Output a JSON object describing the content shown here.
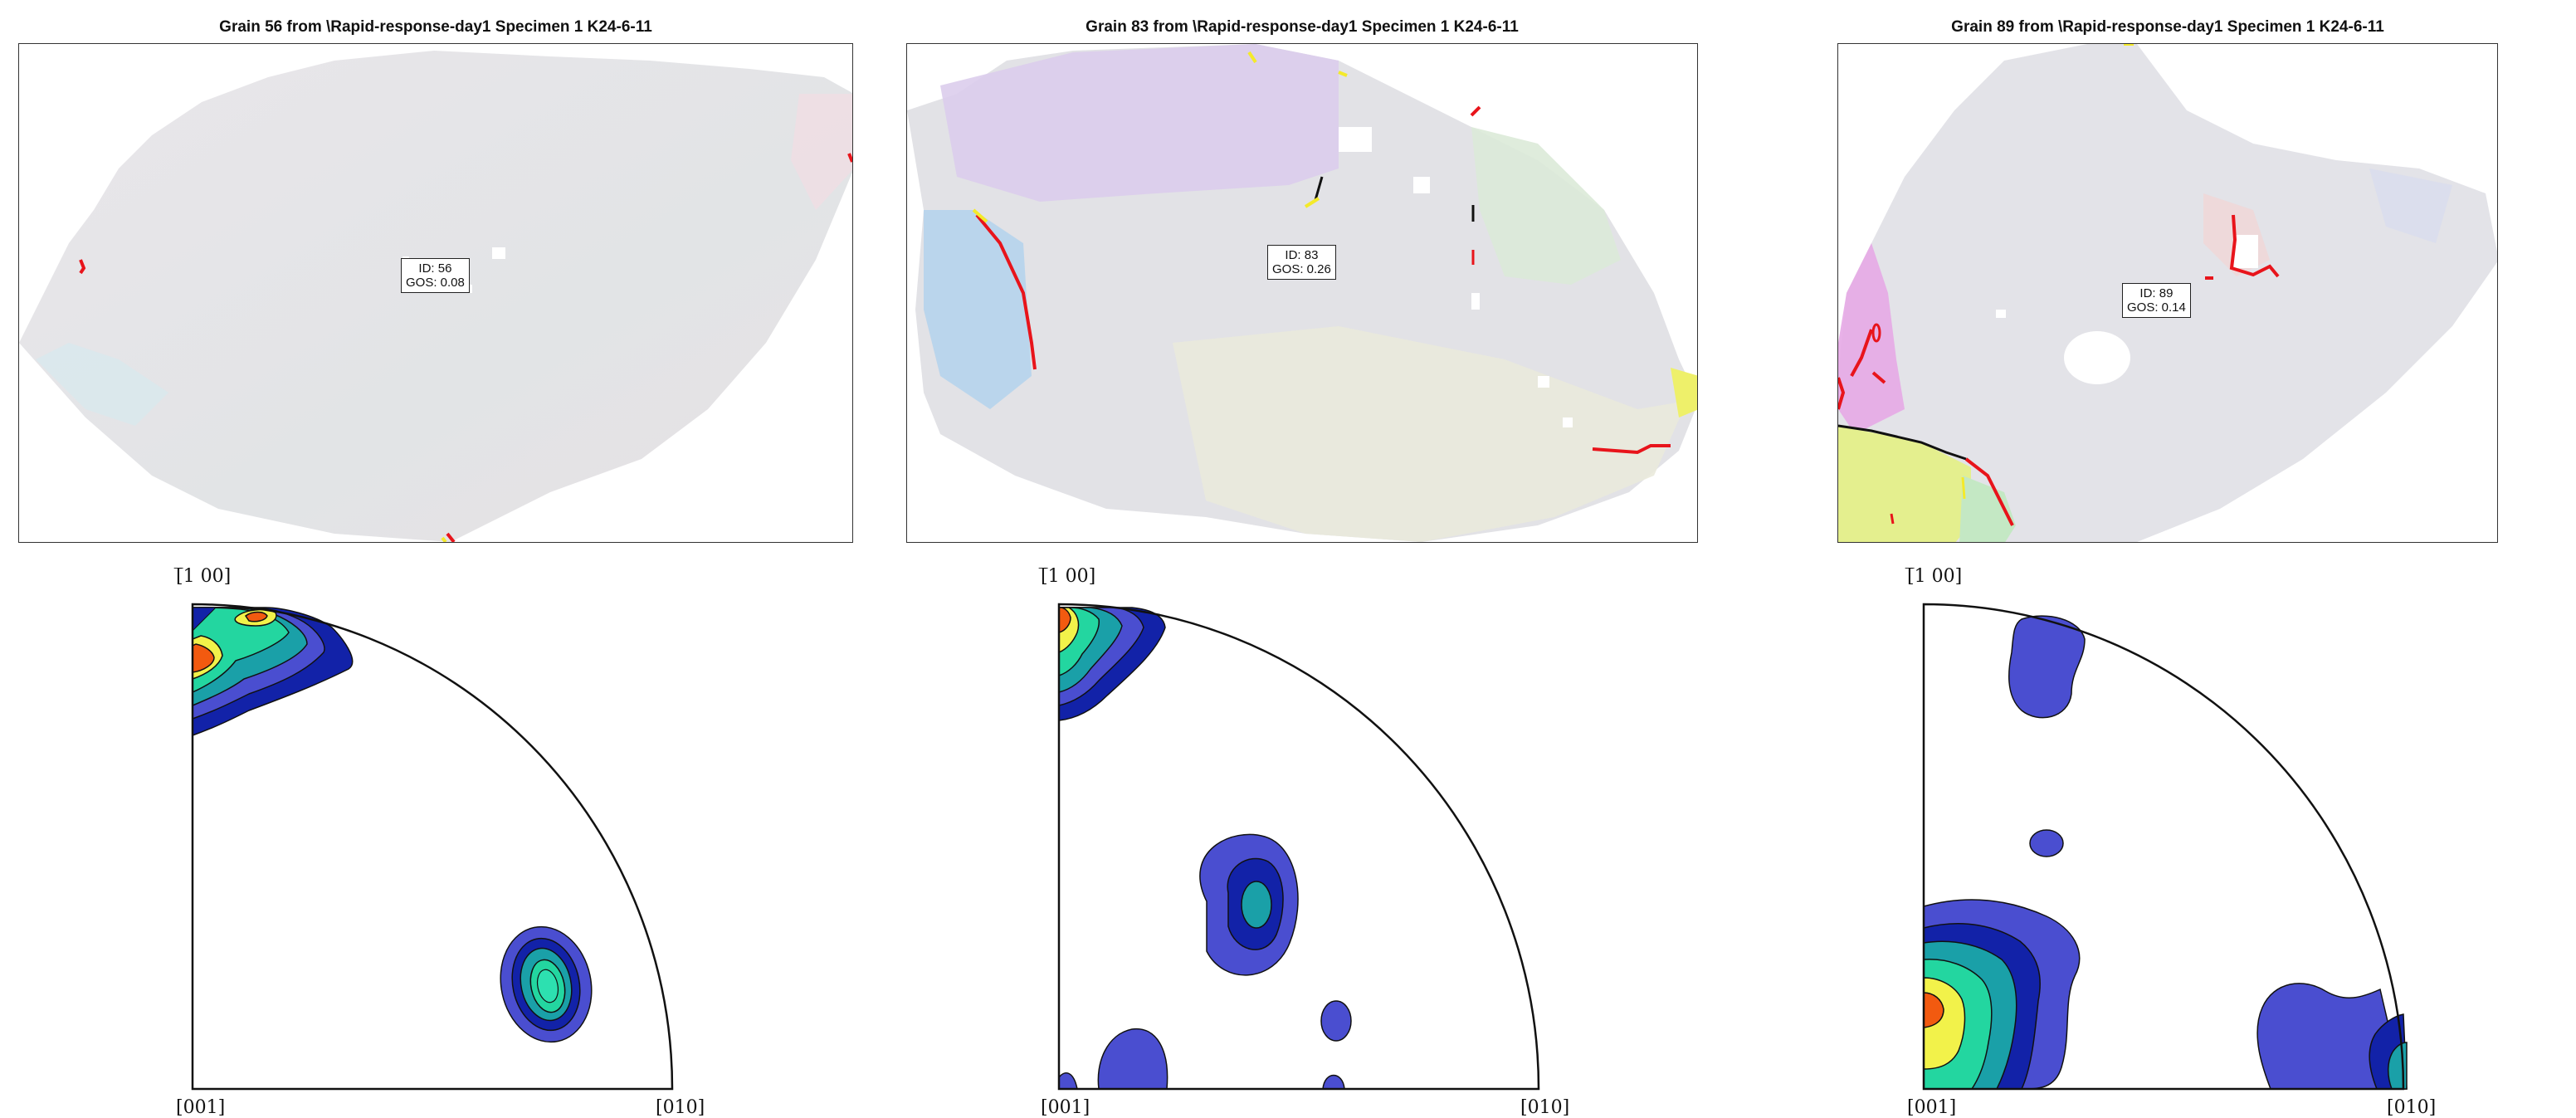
{
  "panels": [
    {
      "title": "Grain 56 from \\Rapid-response-day1 Specimen 1 K24-6-11",
      "grain_id": "ID: 56",
      "gos": "GOS: 0.08",
      "pole_labels": {
        "top": "[̅1 00]",
        "left_bottom": "[001]",
        "right_bottom": "[010]"
      }
    },
    {
      "title": "Grain 83 from \\Rapid-response-day1 Specimen 1 K24-6-11",
      "grain_id": "ID: 83",
      "gos": "GOS: 0.26",
      "pole_labels": {
        "top": "[̅1 00]",
        "left_bottom": "[001]",
        "right_bottom": "[010]"
      }
    },
    {
      "title": "Grain 89 from \\Rapid-response-day1 Specimen 1 K24-6-11",
      "grain_id": "ID: 89",
      "gos": "GOS: 0.14",
      "pole_labels": {
        "top": "[̅1 00]",
        "left_bottom": "[001]",
        "right_bottom": "[010]"
      }
    }
  ],
  "colors": {
    "grain_base": "#e4e4e6",
    "boundary_red": "#e8141b",
    "boundary_yellow": "#f4ea2a",
    "boundary_black": "#111111",
    "contour_dark": "#1222a8",
    "contour_blue": "#4a4ed0",
    "contour_teal": "#1aa0a8",
    "contour_green": "#23d6a0",
    "contour_yellow": "#f2f24a",
    "contour_orange": "#f25a10"
  }
}
